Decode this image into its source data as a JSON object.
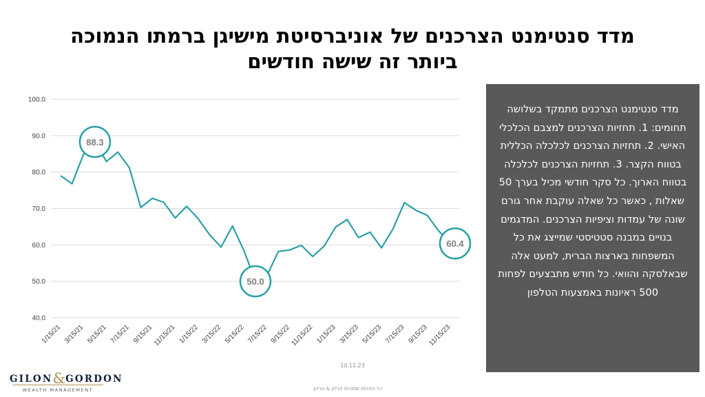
{
  "title": {
    "line1": "מדד סנטימנט הצרכנים של אוניברסיטת מישיגן ברמתו הנמוכה",
    "line2": "ביותר זה שישה חודשים"
  },
  "panel": {
    "text": "מדד סנטימנט  הצרכנים מתמקד בשלושה תחומים: 1. תחזיות הצרכנים למצבם הכלכלי האישי. 2.  תחזיות הצרכנים לכלכלה הכללית בטווח הקצר. 3. תחזיות הצרכנים לכלכלה בטווח הארוך. כל סקר חודשי מכיל בערך 50 שאלות , כאשר כל שאלה עוקבת אחר גורם שונה של עמדות וציפיות הצרכנים. המדגמים בנויים במבנה סטטיסטי שמייצג את כל המשפחות בארצות הברית, למעט אלה שבאלסקה והוואי. כל חודש מתבצעים לפחות 500 ראיונות באמצעות הטלפון"
  },
  "date_stamp": "10.11.23",
  "footer": "כל הזכויות שמורות לגילון & גורדון",
  "logo": {
    "left": "GILON",
    "amp": "&",
    "right": "GORDON",
    "sub": "WEALTH MANAGEMENT"
  },
  "colors": {
    "line": "#2aa0a6",
    "panel": "#595959",
    "grid": "#d9d9d9",
    "callout_text": "#7f7f7f"
  },
  "chart_data": {
    "type": "line",
    "ylim": [
      40,
      100
    ],
    "yticks": [
      "40.0",
      "50.0",
      "60.0",
      "70.0",
      "80.0",
      "90.0",
      "100.0"
    ],
    "xtick_labels": [
      "1/15/21",
      "3/15/21",
      "5/15/21",
      "7/15/21",
      "9/15/21",
      "11/15/21",
      "1/15/22",
      "3/15/22",
      "5/15/22",
      "7/15/22",
      "9/15/22",
      "11/15/22",
      "1/15/23",
      "3/15/23",
      "5/15/23",
      "7/15/23",
      "9/15/23",
      "11/15/23"
    ],
    "x": [
      "Jan 2021",
      "Feb 2021",
      "Mar 2021",
      "Apr 2021",
      "May 2021",
      "Jun 2021",
      "Jul 2021",
      "Aug 2021",
      "Sep 2021",
      "Oct 2021",
      "Nov 2021",
      "Dec 2021",
      "Jan 2022",
      "Feb 2022",
      "Mar 2022",
      "Apr 2022",
      "May 2022",
      "Jun 2022",
      "Jul 2022",
      "Aug 2022",
      "Sep 2022",
      "Oct 2022",
      "Nov 2022",
      "Dec 2022",
      "Jan 2023",
      "Feb 2023",
      "Mar 2023",
      "Apr 2023",
      "May 2023",
      "Jun 2023",
      "Jul 2023",
      "Aug 2023",
      "Sep 2023",
      "Oct 2023",
      "Nov 2023"
    ],
    "values": [
      79.0,
      76.8,
      84.9,
      88.3,
      82.9,
      85.5,
      81.2,
      70.3,
      72.8,
      71.7,
      67.4,
      70.6,
      67.2,
      62.8,
      59.4,
      65.2,
      58.4,
      50.0,
      51.5,
      58.2,
      58.6,
      59.9,
      56.8,
      59.7,
      64.9,
      67.0,
      62.0,
      63.5,
      59.2,
      64.4,
      71.6,
      69.5,
      68.1,
      63.8,
      60.4
    ],
    "callouts": [
      {
        "label": "88.3",
        "index": 3
      },
      {
        "label": "50.0",
        "index": 17
      },
      {
        "label": "60.4",
        "index": 34
      }
    ],
    "grid": "horizontal"
  }
}
